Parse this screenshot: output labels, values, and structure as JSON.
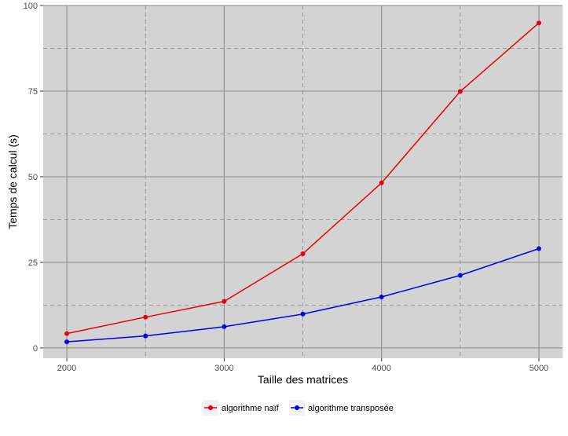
{
  "chart_data": {
    "type": "line",
    "xlabel": "Taille des matrices",
    "ylabel": "Temps de calcul (s)",
    "x": [
      2000,
      2500,
      3000,
      3500,
      4000,
      4500,
      5000
    ],
    "xticks": [
      2000,
      3000,
      4000,
      5000
    ],
    "yticks": [
      0,
      25,
      50,
      75,
      100
    ],
    "xlim": [
      1850,
      5150
    ],
    "ylim": [
      -3,
      100
    ],
    "grid": true,
    "legend_position": "bottom",
    "series": [
      {
        "name": "algorithme naïf",
        "color": "#e8000b",
        "values": [
          4.2,
          9.0,
          13.6,
          27.5,
          48.2,
          74.9,
          94.9
        ]
      },
      {
        "name": "algorithme transposée",
        "color": "#0000e8",
        "values": [
          1.8,
          3.5,
          6.2,
          9.9,
          14.9,
          21.2,
          29.0
        ]
      }
    ],
    "colors": {
      "panel_bg": "#d3d3d3",
      "major_grid": "#8c8c8c",
      "minor_grid": "#9a9a9a"
    }
  }
}
